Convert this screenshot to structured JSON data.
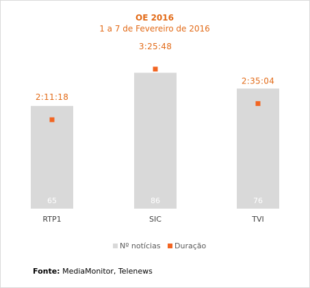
{
  "chart_data": {
    "type": "bar",
    "title": "OE 2016",
    "subtitle": "1 a 7 de Fevereiro de 2016",
    "categories": [
      "RTP1",
      "SIC",
      "TVI"
    ],
    "series": [
      {
        "name": "Nº notícias",
        "type": "bar",
        "values": [
          65,
          86,
          76
        ],
        "color": "#d9d9d9"
      },
      {
        "name": "Duração",
        "type": "point",
        "values": [
          "2:11:18",
          "3:25:48",
          "2:35:04"
        ],
        "color": "#f26522"
      }
    ],
    "ylim": [
      0,
      100
    ],
    "grid": false,
    "legend": "bottom"
  },
  "footer": {
    "source_label": "Fonte:",
    "source_text": " MediaMonitor, Telenews"
  }
}
